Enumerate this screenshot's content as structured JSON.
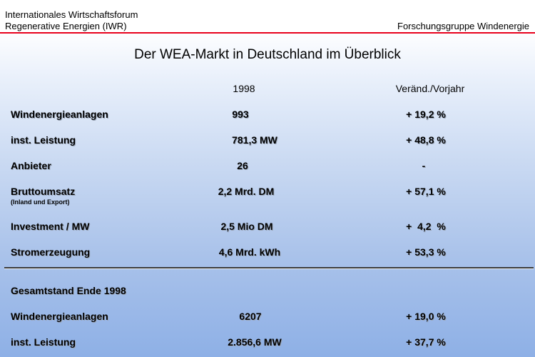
{
  "header": {
    "org_line1": "Internationales Wirtschaftsforum",
    "org_line2": "Regenerative Energien (IWR)",
    "group": "Forschungsgruppe Windenergie"
  },
  "title": "Der WEA-Markt in Deutschland im Überblick",
  "columns": {
    "year": "1998",
    "change": "Veränd./Vorjahr"
  },
  "rows": [
    {
      "label": "Windenergieanlagen",
      "value": "993",
      "change": "+ 19,2 %"
    },
    {
      "label": "inst. Leistung",
      "value": "781,3 MW",
      "change": "+ 48,8 %"
    },
    {
      "label": "Anbieter",
      "value": "26",
      "change": "-"
    },
    {
      "label": "Bruttoumsatz",
      "sublabel": "(Inland und Export)",
      "value": "2,2 Mrd. DM",
      "change": "+ 57,1 %"
    },
    {
      "label": "Investment / MW",
      "value": "2,5 Mio DM",
      "change": "+  4,2  %"
    },
    {
      "label": "Stromerzeugung",
      "value": "4,6 Mrd. kWh",
      "change": "+ 53,3 %"
    }
  ],
  "total_section": {
    "heading": "Gesamtstand Ende 1998",
    "rows": [
      {
        "label": "Windenergieanlagen",
        "value": "6207",
        "change": "+ 19,0 %"
      },
      {
        "label": "inst. Leistung",
        "value": "2.856,6 MW",
        "change": "+ 37,7 %"
      }
    ]
  },
  "colors": {
    "accent_line": "#e8001c",
    "background_bottom": "#8eb0e6"
  }
}
